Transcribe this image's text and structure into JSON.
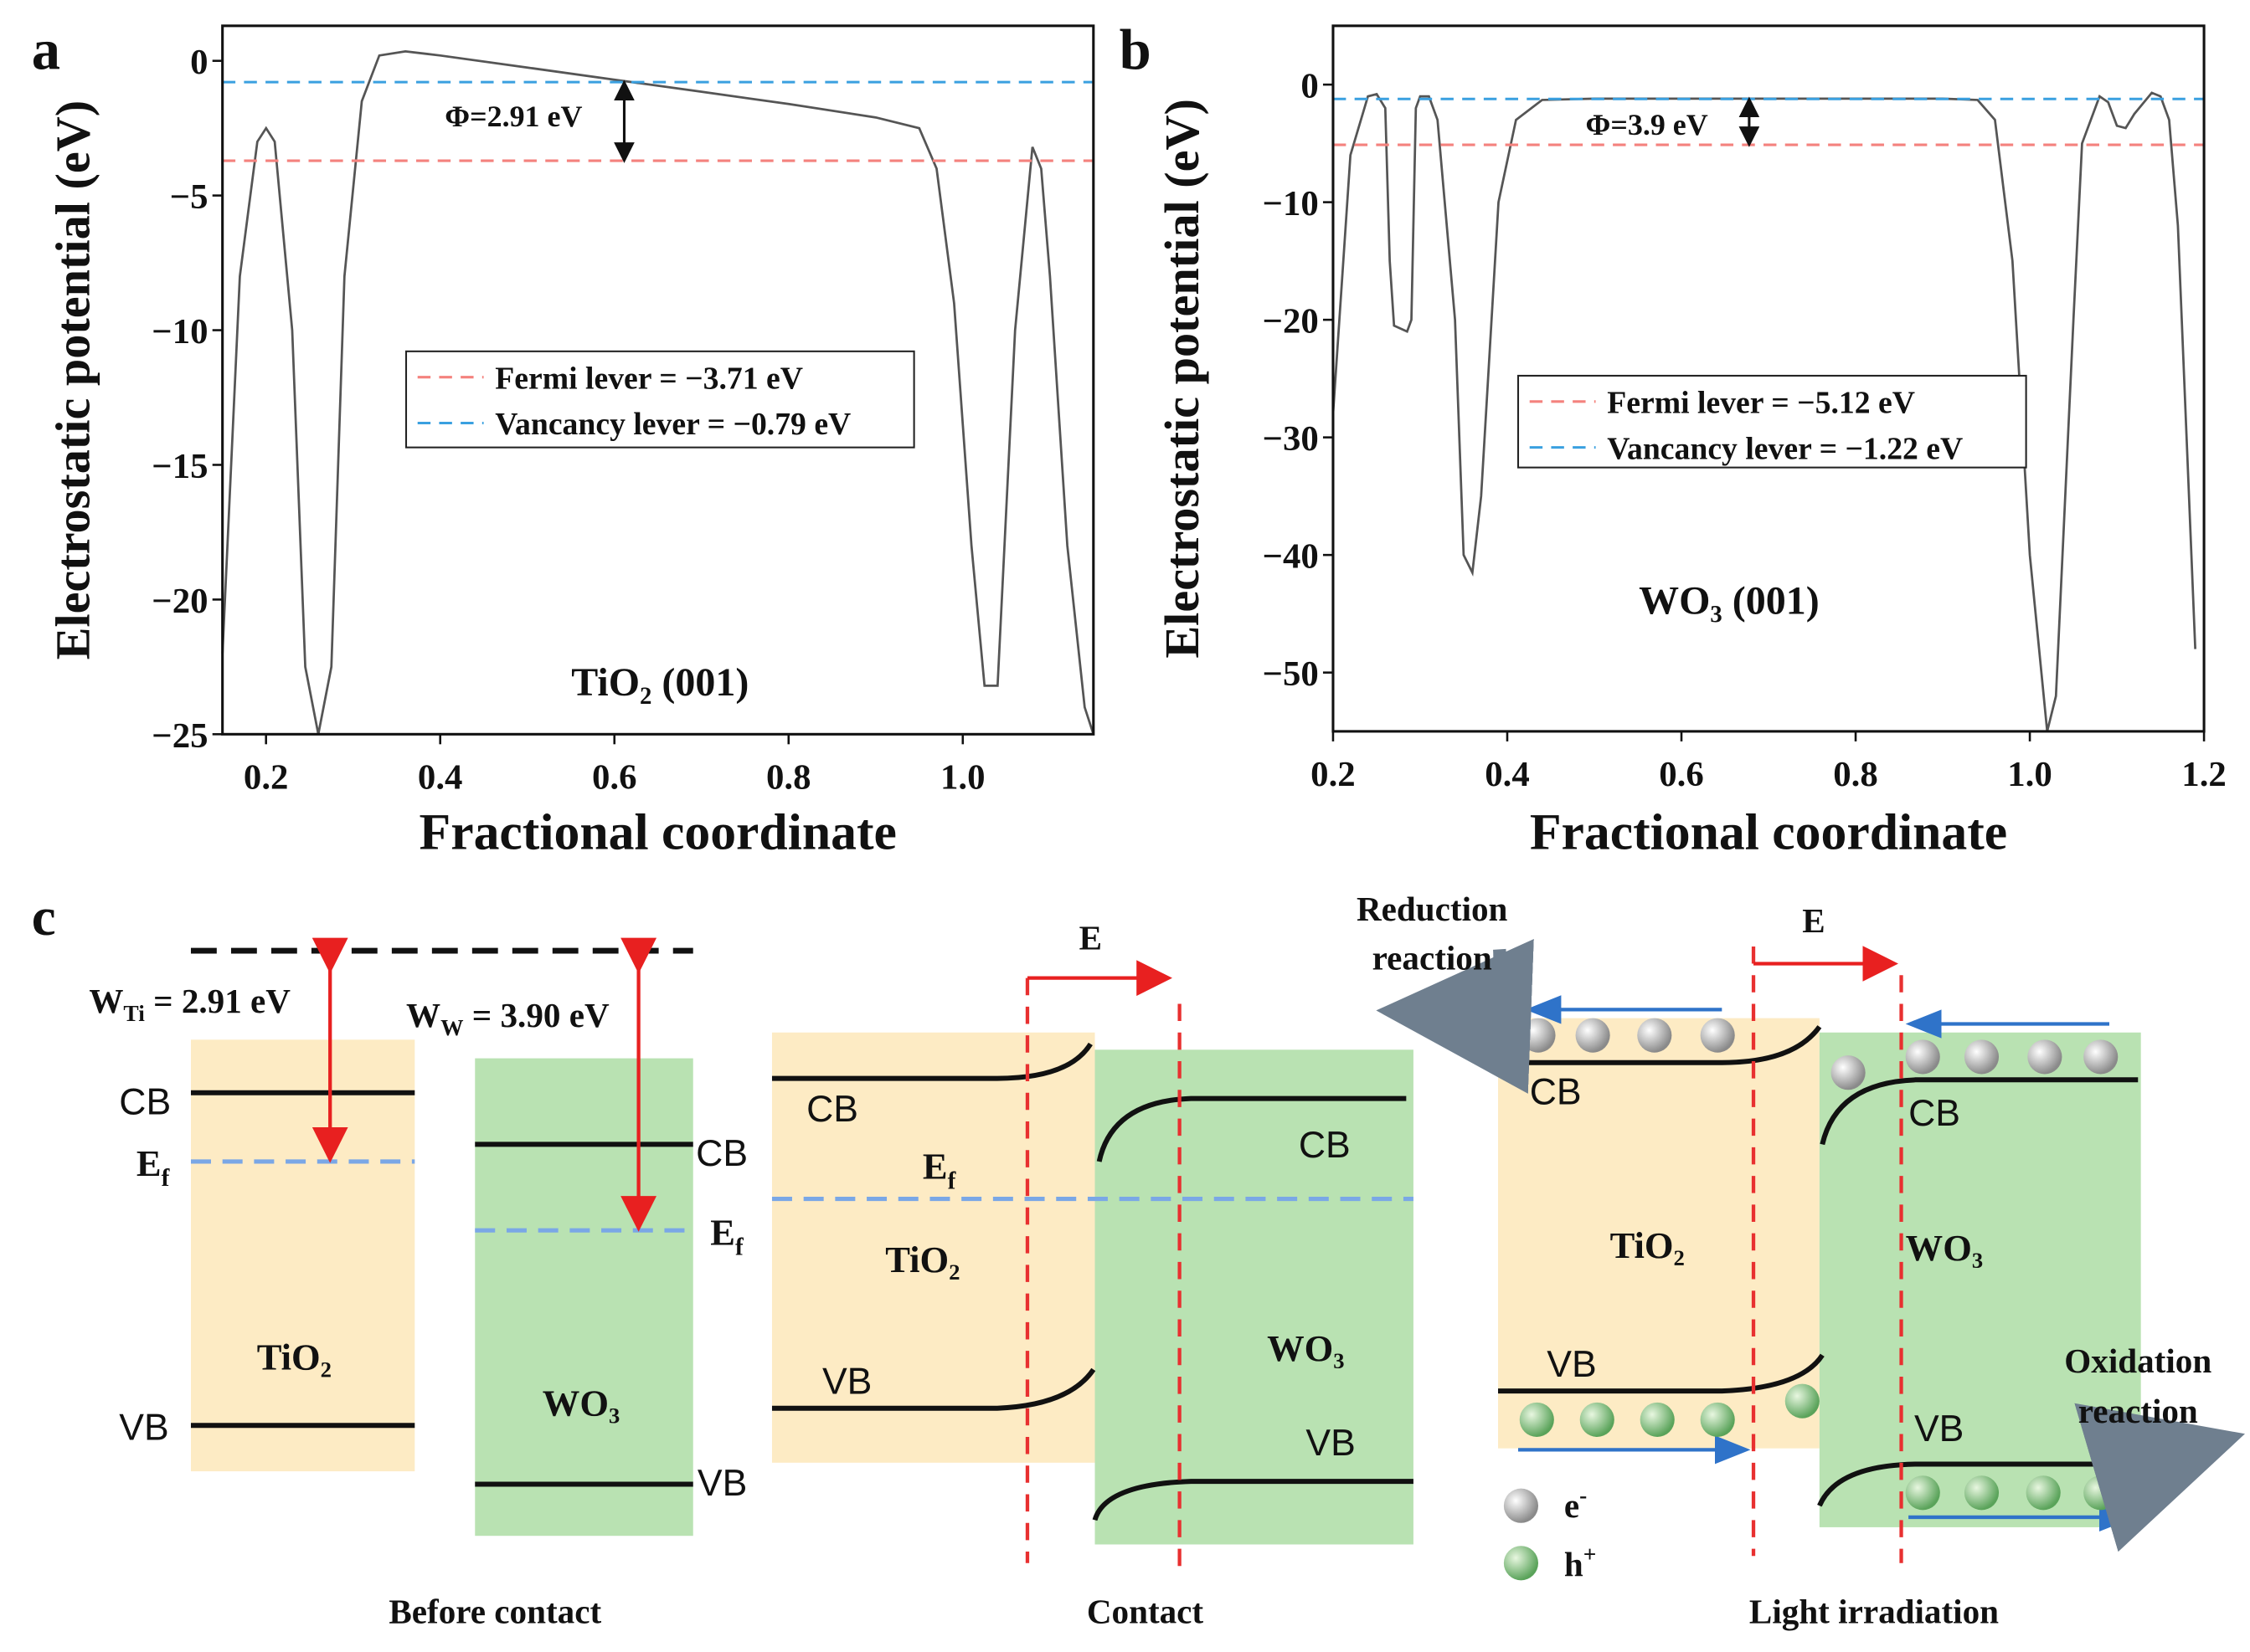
{
  "chart_data": [
    {
      "type": "line",
      "panel_label": "a",
      "x_label": "Fractional coordinate",
      "y_label": "Electrostatic potential (eV)",
      "annotation": "Φ=2.91 eV",
      "material": "TiO₂ (001)",
      "color": "#555555",
      "x": [
        0.15,
        0.17,
        0.19,
        0.2,
        0.21,
        0.23,
        0.245,
        0.26,
        0.275,
        0.29,
        0.31,
        0.33,
        0.36,
        0.4,
        0.5,
        0.6,
        0.7,
        0.8,
        0.9,
        0.95,
        0.97,
        0.99,
        1.01,
        1.025,
        1.04,
        1.06,
        1.08,
        1.09,
        1.1,
        1.12,
        1.14,
        1.15
      ],
      "values": [
        -22,
        -8,
        -3,
        -2.5,
        -3,
        -10,
        -22.5,
        -25,
        -22.5,
        -8,
        -1.5,
        0.2,
        0.35,
        0.2,
        -0.25,
        -0.7,
        -1.15,
        -1.6,
        -2.1,
        -2.5,
        -4,
        -9,
        -18,
        -23.2,
        -23.2,
        -10,
        -3.2,
        -4,
        -8,
        -18,
        -24,
        -25
      ],
      "hlines": [
        {
          "name": "Fermi lever = −3.71 eV",
          "value": -3.71,
          "color": "#f4827e"
        },
        {
          "name": "Vancancy lever = −0.79 eV",
          "value": -0.79,
          "color": "#3aa0e0"
        }
      ],
      "xlim": [
        0.15,
        1.15
      ],
      "xticks": [
        0.2,
        0.4,
        0.6,
        0.8,
        {
          "value": 1,
          "label": "1.0"
        }
      ],
      "ylim": [
        -25,
        1.3
      ],
      "yticks": [
        0,
        {
          "value": -5,
          "label": "−5"
        },
        {
          "value": -10,
          "label": "−10"
        },
        {
          "value": -15,
          "label": "−15"
        },
        {
          "value": -20,
          "label": "−20"
        },
        {
          "value": -25,
          "label": "−25"
        }
      ]
    },
    {
      "type": "line",
      "panel_label": "b",
      "x_label": "Fractional coordinate",
      "y_label": "Electrostatic potential (eV)",
      "annotation": "Φ=3.9 eV",
      "material": "WO₃ (001)",
      "color": "#555555",
      "x": [
        0.2,
        0.22,
        0.24,
        0.25,
        0.26,
        0.265,
        0.27,
        0.285,
        0.29,
        0.295,
        0.3,
        0.31,
        0.32,
        0.34,
        0.35,
        0.36,
        0.37,
        0.39,
        0.41,
        0.44,
        0.5,
        0.9,
        0.94,
        0.96,
        0.98,
        1.0,
        1.02,
        1.03,
        1.05,
        1.06,
        1.08,
        1.09,
        1.1,
        1.11,
        1.12,
        1.14,
        1.15,
        1.16,
        1.17,
        1.19
      ],
      "values": [
        -28,
        -6,
        -1,
        -0.8,
        -2,
        -15,
        -20.5,
        -21,
        -20,
        -2,
        -1,
        -1,
        -3,
        -20,
        -40,
        -41.5,
        -35,
        -10,
        -3,
        -1.3,
        -1.2,
        -1.2,
        -1.3,
        -3,
        -15,
        -40,
        -55,
        -52,
        -20,
        -5,
        -1,
        -1.5,
        -3.5,
        -3.7,
        -2.5,
        -0.7,
        -1,
        -3,
        -12,
        -48
      ],
      "hlines": [
        {
          "name": "Fermi lever = −5.12 eV",
          "value": -5.12,
          "color": "#f4827e"
        },
        {
          "name": "Vancancy lever = −1.22 eV",
          "value": -1.22,
          "color": "#3aa0e0"
        }
      ],
      "xlim": [
        0.2,
        1.2
      ],
      "xticks": [
        0.2,
        0.4,
        0.6,
        0.8,
        {
          "value": 1,
          "label": "1.0"
        },
        1.2
      ],
      "ylim": [
        -55,
        5
      ],
      "yticks": [
        0,
        {
          "value": -10,
          "label": "−10"
        },
        {
          "value": -20,
          "label": "−20"
        },
        {
          "value": -30,
          "label": "−30"
        },
        {
          "value": -40,
          "label": "−40"
        },
        {
          "value": -50,
          "label": "−50"
        }
      ]
    }
  ],
  "diagram": {
    "panel_label": "c",
    "before_contact": {
      "title": "Before contact",
      "work_ti": {
        "symbol": "W",
        "sub": "Ti",
        "text": " = 2.91 eV"
      },
      "work_w": {
        "symbol": "W",
        "sub": "W",
        "text": " = 3.90 eV"
      },
      "tio2": {
        "name": "TiO₂",
        "cb": "CB",
        "ef": {
          "symbol": "E",
          "sub": "f"
        },
        "vb": "VB"
      },
      "wo3": {
        "name": "WO₃",
        "cb": "CB",
        "ef": {
          "symbol": "E",
          "sub": "f"
        },
        "vb": "VB"
      }
    },
    "contact": {
      "title": "Contact",
      "field": "E",
      "ef": {
        "symbol": "E",
        "sub": "f"
      },
      "tio2": {
        "name": "TiO₂",
        "cb": "CB",
        "vb": "VB"
      },
      "wo3": {
        "name": "WO₃",
        "cb": "CB",
        "vb": "VB"
      }
    },
    "light_irradiation": {
      "title": "Light irradiation",
      "field": "E",
      "reduction": [
        "Reduction",
        "reaction"
      ],
      "oxidation": [
        "Oxidation",
        "reaction"
      ],
      "tio2": {
        "name": "TiO₂",
        "cb": "CB",
        "vb": "VB"
      },
      "wo3": {
        "name": "WO₃",
        "cb": "CB",
        "vb": "VB"
      },
      "legend": [
        {
          "symbol": "e",
          "sup": "-"
        },
        {
          "symbol": "h",
          "sup": "+"
        }
      ]
    }
  }
}
